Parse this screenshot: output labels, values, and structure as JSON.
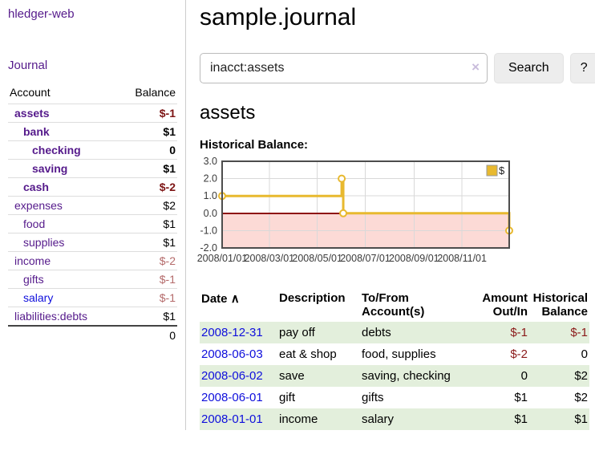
{
  "app": {
    "title": "hledger-web"
  },
  "colors": {
    "link_purple": "#551a8b",
    "link_blue": "#0f0fdc",
    "negative_strong": "#7c1313",
    "negative_dim": "#b46a6a",
    "negative_table": "#8b1a1a",
    "row_stripe_green": "#e3efdc",
    "chart_line_yellow": "#e8b92f",
    "chart_negative_region": "#fcdad6",
    "chart_zero_line": "#8e1212",
    "chart_grid": "#d9d9d9",
    "chart_border": "#4d4d4d"
  },
  "sidebar": {
    "journal_link": "Journal",
    "accounts_table": {
      "headers": {
        "account": "Account",
        "balance": "Balance"
      },
      "rows": [
        {
          "name": "assets",
          "balance": "$-1",
          "indent": 0,
          "bold": true,
          "balance_class": "neg-strong"
        },
        {
          "name": "bank",
          "balance": "$1",
          "indent": 1,
          "bold": true,
          "balance_class": ""
        },
        {
          "name": "checking",
          "balance": "0",
          "indent": 2,
          "bold": true,
          "balance_class": ""
        },
        {
          "name": "saving",
          "balance": "$1",
          "indent": 2,
          "bold": true,
          "balance_class": ""
        },
        {
          "name": "cash",
          "balance": "$-2",
          "indent": 1,
          "bold": true,
          "balance_class": "neg-strong"
        },
        {
          "name": "expenses",
          "balance": "$2",
          "indent": 0,
          "bold": false,
          "balance_class": ""
        },
        {
          "name": "food",
          "balance": "$1",
          "indent": 1,
          "bold": false,
          "balance_class": ""
        },
        {
          "name": "supplies",
          "balance": "$1",
          "indent": 1,
          "bold": false,
          "balance_class": ""
        },
        {
          "name": "income",
          "balance": "$-2",
          "indent": 0,
          "bold": false,
          "balance_class": "neg-dim"
        },
        {
          "name": "gifts",
          "balance": "$-1",
          "indent": 1,
          "bold": false,
          "balance_class": "neg-dim"
        },
        {
          "name": "salary",
          "balance": "$-1",
          "indent": 1,
          "bold": false,
          "balance_class": "neg-dim",
          "link_color": "#0f0fdc"
        },
        {
          "name": "liabilities:debts",
          "balance": "$1",
          "indent": 0,
          "bold": false,
          "balance_class": ""
        }
      ],
      "total": "0"
    }
  },
  "header": {
    "title": "sample.journal"
  },
  "search": {
    "value": "inacct:assets",
    "clear_icon": "×",
    "button_label": "Search",
    "help_label": "?"
  },
  "main": {
    "account_heading": "assets",
    "chart_label": "Historical Balance:"
  },
  "chart_data": {
    "type": "line",
    "style": "step",
    "title": "Historical Balance",
    "series": [
      {
        "name": "$",
        "color": "#e8b92f",
        "points": [
          [
            "2008-01-01",
            1
          ],
          [
            "2008-06-01",
            2
          ],
          [
            "2008-06-03",
            0
          ],
          [
            "2008-12-31",
            -1
          ]
        ]
      }
    ],
    "xlim": [
      "2008-01-01",
      "2008-12-31"
    ],
    "ylim": [
      -2,
      3
    ],
    "yticks": [
      {
        "label": "3.0",
        "value": 3
      },
      {
        "label": "2.0",
        "value": 2
      },
      {
        "label": "1.0",
        "value": 1
      },
      {
        "label": "0.0",
        "value": 0
      },
      {
        "label": "-1.0",
        "value": -1
      },
      {
        "label": "-2.0",
        "value": -2
      }
    ],
    "xticks": [
      {
        "label": "2008/01/01",
        "date": "2008-01-01"
      },
      {
        "label": "2008/03/01",
        "date": "2008-03-01"
      },
      {
        "label": "2008/05/01",
        "date": "2008-05-01"
      },
      {
        "label": "2008/07/01",
        "date": "2008-07-01"
      },
      {
        "label": "2008/09/01",
        "date": "2008-09-01"
      },
      {
        "label": "2008/11/01",
        "date": "2008-11-01"
      }
    ],
    "legend": {
      "position": "top-right",
      "label": "$"
    },
    "grid": true,
    "negative_region": true
  },
  "register_table": {
    "headers": {
      "date": "Date",
      "description": "Description",
      "accounts": "To/From Account(s)",
      "amount": "Amount Out/In",
      "balance": "Historical Balance"
    },
    "sort_icon": "∧",
    "rows": [
      {
        "date": "2008-12-31",
        "description": "pay off",
        "accounts": "debts",
        "amount": "$-1",
        "balance": "$-1",
        "amount_neg": true,
        "balance_neg": true
      },
      {
        "date": "2008-06-03",
        "description": "eat & shop",
        "accounts": "food, supplies",
        "amount": "$-2",
        "balance": "0",
        "amount_neg": true,
        "balance_neg": false
      },
      {
        "date": "2008-06-02",
        "description": "save",
        "accounts": "saving, checking",
        "amount": "0",
        "balance": "$2",
        "amount_neg": false,
        "balance_neg": false
      },
      {
        "date": "2008-06-01",
        "description": "gift",
        "accounts": "gifts",
        "amount": "$1",
        "balance": "$2",
        "amount_neg": false,
        "balance_neg": false
      },
      {
        "date": "2008-01-01",
        "description": "income",
        "accounts": "salary",
        "amount": "$1",
        "balance": "$1",
        "amount_neg": false,
        "balance_neg": false
      }
    ]
  }
}
